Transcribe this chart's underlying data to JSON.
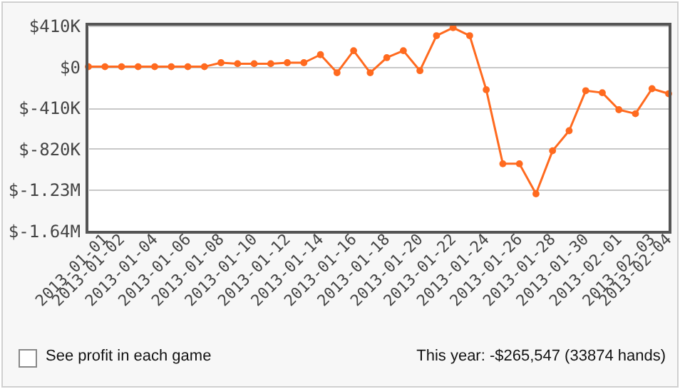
{
  "chart_data": {
    "type": "line",
    "x": [
      "2012-12-31",
      "2013-01-01",
      "2013-01-02",
      "2013-01-03",
      "2013-01-04",
      "2013-01-05",
      "2013-01-06",
      "2013-01-07",
      "2013-01-08",
      "2013-01-09",
      "2013-01-10",
      "2013-01-11",
      "2013-01-12",
      "2013-01-13",
      "2013-01-14",
      "2013-01-15",
      "2013-01-16",
      "2013-01-17",
      "2013-01-18",
      "2013-01-19",
      "2013-01-20",
      "2013-01-21",
      "2013-01-22",
      "2013-01-23",
      "2013-01-24",
      "2013-01-25",
      "2013-01-26",
      "2013-01-27",
      "2013-01-28",
      "2013-01-29",
      "2013-01-30",
      "2013-01-31",
      "2013-02-01",
      "2013-02-02",
      "2013-02-03",
      "2013-02-04"
    ],
    "series": [
      {
        "color": "#ff6a1f",
        "values": [
          0,
          0,
          0,
          0,
          0,
          0,
          0,
          0,
          40000,
          30000,
          30000,
          30000,
          40000,
          40000,
          120000,
          -60000,
          160000,
          -60000,
          90000,
          160000,
          -40000,
          310000,
          390000,
          310000,
          -230000,
          -970000,
          -970000,
          -1270000,
          -840000,
          -640000,
          -240000,
          -260000,
          -430000,
          -470000,
          -220000,
          -270000
        ]
      }
    ],
    "xlim": [
      "2012-12-31",
      "2013-02-04"
    ],
    "xticks": [
      "2013-01-01",
      "2013-01-02",
      "2013-01-04",
      "2013-01-06",
      "2013-01-08",
      "2013-01-10",
      "2013-01-12",
      "2013-01-14",
      "2013-01-16",
      "2013-01-18",
      "2013-01-20",
      "2013-01-22",
      "2013-01-24",
      "2013-01-26",
      "2013-01-28",
      "2013-01-30",
      "2013-02-01",
      "2013-02-03",
      "2013-02-04"
    ],
    "ylim": [
      -1640000,
      410000
    ],
    "yticks": [
      {
        "value": 410000,
        "label": "$410K"
      },
      {
        "value": 0,
        "label": "$0"
      },
      {
        "value": -410000,
        "label": "$-410K"
      },
      {
        "value": -820000,
        "label": "$-820K"
      },
      {
        "value": -1230000,
        "label": "$-1.23M"
      },
      {
        "value": -1640000,
        "label": "$-1.64M"
      }
    ],
    "grid": "y",
    "marker": "circle",
    "line_style": "solid",
    "annotations": [
      "See profit in each game",
      "This year: -$265,547 (33874 hands)"
    ]
  }
}
